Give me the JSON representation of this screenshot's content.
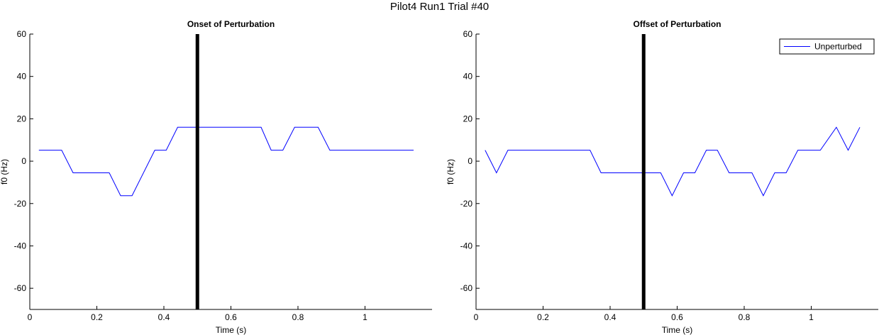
{
  "figure_title": "Pilot4 Run1 Trial #40",
  "chart_data": [
    {
      "type": "line",
      "title": "Onset of Perturbation",
      "xlabel": "Time (s)",
      "ylabel": "f0 (Hz)",
      "xlim": [
        0,
        1.2
      ],
      "ylim": [
        -70,
        60
      ],
      "xticks": [
        0,
        0.2,
        0.4,
        0.6,
        0.8,
        1
      ],
      "xtick_labels": [
        "0",
        "0.2",
        "0.4",
        "0.6",
        "0.8",
        "1"
      ],
      "yticks": [
        60,
        40,
        20,
        0,
        -20,
        -40,
        -60
      ],
      "ytick_labels": [
        "60",
        "40",
        "20",
        "0",
        "-20",
        "-40",
        "-60"
      ],
      "grid": false,
      "series": [
        {
          "color": "#0000ff",
          "x": [
            0.027,
            0.095,
            0.129,
            0.237,
            0.271,
            0.305,
            0.373,
            0.407,
            0.441,
            0.508,
            0.576,
            0.644,
            0.69,
            0.72,
            0.755,
            0.79,
            0.86,
            0.895,
            0.96,
            1.02,
            1.08,
            1.145
          ],
          "y": [
            5.2,
            5.2,
            -5.5,
            -5.5,
            -16.3,
            -16.3,
            5.2,
            5.2,
            16,
            16,
            16,
            16,
            16,
            5.2,
            5.2,
            16,
            16,
            5.2,
            5.2,
            5.2,
            5.2,
            5.2
          ]
        }
      ],
      "marker": {
        "x": 0.5,
        "color": "#000000"
      }
    },
    {
      "type": "line",
      "title": "Offset of Perturbation",
      "xlabel": "Time (s)",
      "ylabel": "f0 (Hz)",
      "xlim": [
        0,
        1.2
      ],
      "ylim": [
        -70,
        60
      ],
      "xticks": [
        0,
        0.2,
        0.4,
        0.6,
        0.8,
        1
      ],
      "xtick_labels": [
        "0",
        "0.2",
        "0.4",
        "0.6",
        "0.8",
        "1"
      ],
      "yticks": [
        60,
        40,
        20,
        0,
        -20,
        -40,
        -60
      ],
      "ytick_labels": [
        "60",
        "40",
        "20",
        "0",
        "-20",
        "-40",
        "-60"
      ],
      "grid": false,
      "legend": {
        "entries": [
          "Unperturbed"
        ],
        "position": "top-right"
      },
      "series": [
        {
          "name": "Unperturbed",
          "color": "#0000ff",
          "x": [
            0.027,
            0.061,
            0.095,
            0.163,
            0.237,
            0.305,
            0.34,
            0.373,
            0.441,
            0.508,
            0.542,
            0.551,
            0.585,
            0.619,
            0.653,
            0.687,
            0.72,
            0.755,
            0.823,
            0.857,
            0.891,
            0.925,
            0.96,
            1.027,
            1.075,
            1.11,
            1.145
          ],
          "y": [
            5.2,
            -5.5,
            5.2,
            5.2,
            5.2,
            5.2,
            5.2,
            -5.5,
            -5.5,
            -5.5,
            -5.5,
            -5.5,
            -16.3,
            -5.5,
            -5.5,
            5.2,
            5.2,
            -5.5,
            -5.5,
            -16.3,
            -5.5,
            -5.5,
            5.2,
            5.2,
            16,
            5.2,
            16
          ]
        }
      ],
      "marker": {
        "x": 0.5,
        "color": "#000000"
      }
    }
  ]
}
